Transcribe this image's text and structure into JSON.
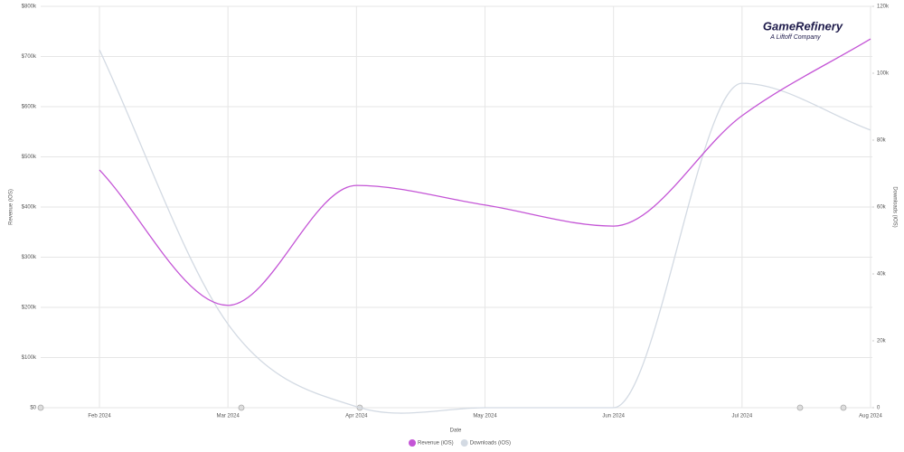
{
  "chart_data": {
    "type": "line",
    "logo": {
      "title": "GameRefinery",
      "subtitle": "A Liftoff Company"
    },
    "x_label": "Date",
    "y_label": "Revenue (iOS)",
    "y2_label": "Downloads (iOS)",
    "categories": [
      "Feb 2024",
      "Mar 2024",
      "Apr 2024",
      "May 2024",
      "Jun 2024",
      "Jul 2024",
      "Aug 2024"
    ],
    "series": [
      {
        "name": "Revenue (iOS)",
        "color": "#c455d6",
        "values": [
          474000,
          204000,
          443000,
          404000,
          362000,
          582000,
          735000
        ]
      },
      {
        "name": "Downloads (iOS)",
        "color": "#d3dae3",
        "axis": "y2",
        "values": [
          107000,
          25000,
          300,
          0,
          0,
          97000,
          83000
        ]
      }
    ],
    "ylim": [
      0,
      800000
    ],
    "yticks": [
      {
        "value": 0,
        "label": "$0"
      },
      {
        "value": 100000,
        "label": "$100k"
      },
      {
        "value": 200000,
        "label": "$200k"
      },
      {
        "value": 300000,
        "label": "$300k"
      },
      {
        "value": 400000,
        "label": "$400k"
      },
      {
        "value": 500000,
        "label": "$500k"
      },
      {
        "value": 600000,
        "label": "$600k"
      },
      {
        "value": 700000,
        "label": "$700k"
      },
      {
        "value": 800000,
        "label": "$800k"
      }
    ],
    "y2lim": [
      0,
      120000
    ],
    "y2ticks": [
      0,
      {
        "value": 20000,
        "label": "20k"
      },
      {
        "value": 40000,
        "label": "40k"
      },
      {
        "value": 60000,
        "label": "60k"
      },
      {
        "value": 80000,
        "label": "80k"
      },
      {
        "value": 100000,
        "label": "100k"
      },
      {
        "value": 120000,
        "label": "120k"
      }
    ],
    "grid": true,
    "legend": "bottom"
  }
}
